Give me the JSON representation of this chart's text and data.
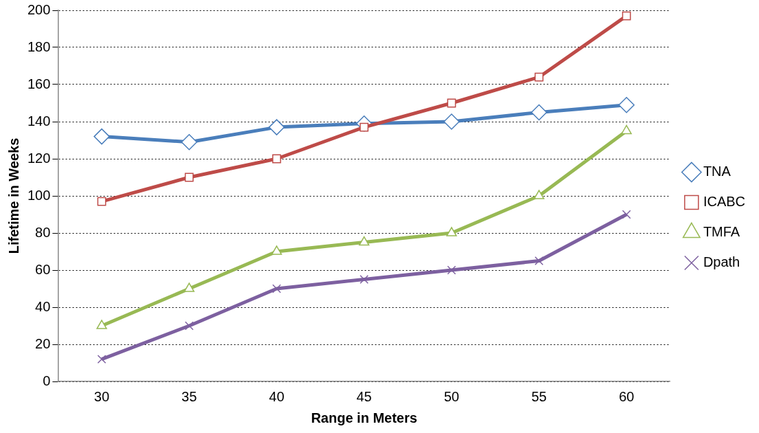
{
  "chart_data": {
    "type": "line",
    "xlabel": "Range in Meters",
    "ylabel": "Lifetime in Weeks",
    "categories": [
      "30",
      "35",
      "40",
      "45",
      "50",
      "55",
      "60"
    ],
    "ylim": [
      0,
      200
    ],
    "yticks": [
      0,
      20,
      40,
      60,
      80,
      100,
      120,
      140,
      160,
      180,
      200
    ],
    "grid": "y",
    "legend": "right",
    "line_style": "solid",
    "series": [
      {
        "name": "TNA",
        "color": "#4a7ebb",
        "marker": "diamond",
        "values": [
          132,
          129,
          137,
          139,
          140,
          145,
          149
        ]
      },
      {
        "name": "ICABC",
        "color": "#be4b48",
        "marker": "square",
        "values": [
          97,
          110,
          120,
          137,
          150,
          164,
          197
        ]
      },
      {
        "name": "TMFA",
        "color": "#98b954",
        "marker": "triangle",
        "values": [
          30,
          50,
          70,
          75,
          80,
          100,
          135
        ]
      },
      {
        "name": "Dpath",
        "color": "#7d60a0",
        "marker": "cross",
        "values": [
          12,
          30,
          50,
          55,
          60,
          65,
          90
        ]
      }
    ]
  }
}
